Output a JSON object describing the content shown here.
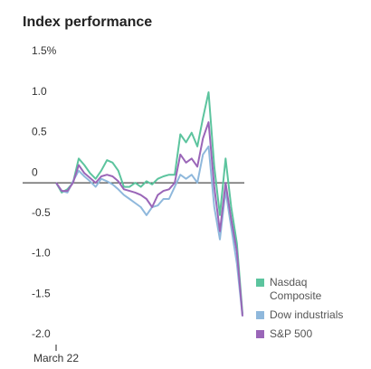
{
  "chart_data": {
    "type": "line",
    "title": "Index performance",
    "categories": [
      "March 22",
      null,
      null,
      null,
      null,
      null,
      null,
      null,
      null,
      null,
      null,
      null,
      null,
      null,
      null,
      null,
      null,
      null,
      null,
      null,
      null,
      null,
      null,
      null,
      null,
      null,
      null,
      null,
      null,
      null,
      null,
      null,
      null,
      null
    ],
    "series": [
      {
        "name": "Nasdaq Composite",
        "color": "#5cc49e",
        "values": [
          0,
          -0.12,
          -0.08,
          0.0,
          0.3,
          0.22,
          0.12,
          0.05,
          0.15,
          0.28,
          0.25,
          0.15,
          -0.05,
          -0.05,
          0.0,
          -0.05,
          0.02,
          -0.02,
          0.05,
          0.08,
          0.1,
          0.1,
          0.6,
          0.5,
          0.62,
          0.45,
          0.8,
          1.12,
          0.2,
          -0.4,
          0.3,
          -0.3,
          -0.75,
          -1.62
        ]
      },
      {
        "name": "Dow industrials",
        "color": "#8fb8dc",
        "values": [
          0,
          -0.1,
          -0.12,
          0.02,
          0.15,
          0.08,
          0.02,
          -0.05,
          0.05,
          0.02,
          -0.02,
          -0.08,
          -0.15,
          -0.2,
          -0.25,
          -0.3,
          -0.4,
          -0.3,
          -0.28,
          -0.2,
          -0.2,
          -0.05,
          0.1,
          0.05,
          0.1,
          0.0,
          0.35,
          0.45,
          -0.3,
          -0.7,
          -0.1,
          -0.55,
          -1.0,
          -1.65
        ]
      },
      {
        "name": "S&P 500",
        "color": "#9a66b8",
        "values": [
          0,
          -0.1,
          -0.1,
          0.0,
          0.22,
          0.12,
          0.06,
          0.0,
          0.08,
          0.1,
          0.08,
          0.02,
          -0.08,
          -0.1,
          -0.12,
          -0.15,
          -0.2,
          -0.3,
          -0.15,
          -0.1,
          -0.08,
          0.0,
          0.35,
          0.25,
          0.3,
          0.2,
          0.55,
          0.75,
          -0.05,
          -0.6,
          0.0,
          -0.45,
          -0.85,
          -1.65
        ]
      }
    ],
    "ylim": [
      -2.0,
      1.5
    ],
    "yticks": [
      {
        "value": 1.5,
        "label": "1.5%"
      },
      {
        "value": 1.0,
        "label": "1.0"
      },
      0.5,
      0,
      -0.5,
      {
        "value": -1.0,
        "label": "-1.0"
      },
      -1.5,
      {
        "value": -2.0,
        "label": "-2.0"
      }
    ],
    "grid": false
  }
}
